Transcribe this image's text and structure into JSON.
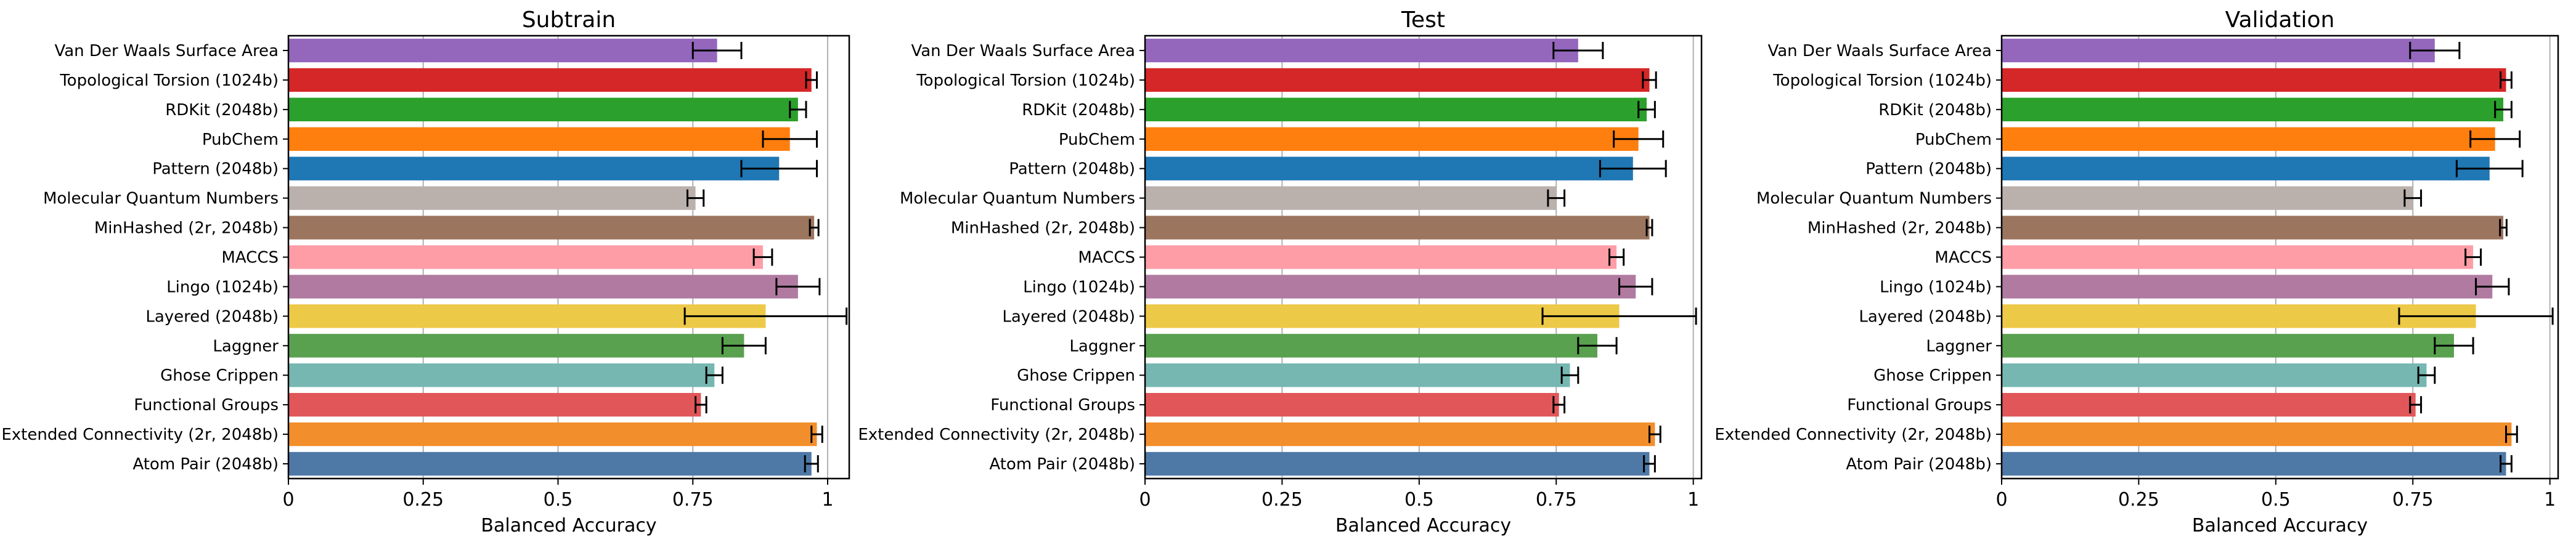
{
  "chart_data": [
    {
      "type": "bar",
      "orientation": "horizontal",
      "title": "Subtrain",
      "xlabel": "Balanced Accuracy",
      "xlim": [
        0,
        1.04
      ],
      "xticks": [
        0,
        0.25,
        0.5,
        0.75,
        1
      ],
      "xtick_labels": [
        "0",
        "0.25",
        "0.5",
        "0.75",
        "1"
      ],
      "grid": "vertical",
      "categories": [
        "Van Der Waals Surface Area",
        "Topological Torsion (1024b)",
        "RDKit (2048b)",
        "PubChem",
        "Pattern (2048b)",
        "Molecular Quantum Numbers",
        "MinHashed (2r, 2048b)",
        "MACCS",
        "Lingo (1024b)",
        "Layered (2048b)",
        "Laggner",
        "Ghose Crippen",
        "Functional Groups",
        "Extended Connectivity (2r, 2048b)",
        "Atom Pair (2048b)"
      ],
      "values": [
        0.795,
        0.97,
        0.945,
        0.93,
        0.91,
        0.755,
        0.975,
        0.88,
        0.945,
        0.885,
        0.845,
        0.79,
        0.765,
        0.98,
        0.97
      ],
      "errors": [
        0.045,
        0.01,
        0.015,
        0.05,
        0.07,
        0.015,
        0.008,
        0.017,
        0.04,
        0.15,
        0.04,
        0.015,
        0.01,
        0.01,
        0.012
      ]
    },
    {
      "type": "bar",
      "orientation": "horizontal",
      "title": "Test",
      "xlabel": "Balanced Accuracy",
      "xlim": [
        0,
        1.015
      ],
      "xticks": [
        0,
        0.25,
        0.5,
        0.75,
        1
      ],
      "xtick_labels": [
        "0",
        "0.25",
        "0.5",
        "0.75",
        "1"
      ],
      "grid": "vertical",
      "categories": [
        "Van Der Waals Surface Area",
        "Topological Torsion (1024b)",
        "RDKit (2048b)",
        "PubChem",
        "Pattern (2048b)",
        "Molecular Quantum Numbers",
        "MinHashed (2r, 2048b)",
        "MACCS",
        "Lingo (1024b)",
        "Layered (2048b)",
        "Laggner",
        "Ghose Crippen",
        "Functional Groups",
        "Extended Connectivity (2r, 2048b)",
        "Atom Pair (2048b)"
      ],
      "values": [
        0.79,
        0.92,
        0.915,
        0.9,
        0.89,
        0.75,
        0.92,
        0.86,
        0.895,
        0.865,
        0.825,
        0.775,
        0.755,
        0.93,
        0.92
      ],
      "errors": [
        0.045,
        0.012,
        0.015,
        0.045,
        0.06,
        0.015,
        0.005,
        0.013,
        0.03,
        0.14,
        0.035,
        0.015,
        0.01,
        0.01,
        0.01
      ]
    },
    {
      "type": "bar",
      "orientation": "horizontal",
      "title": "Validation",
      "xlabel": "Balanced Accuracy",
      "xlim": [
        0,
        1.015
      ],
      "xticks": [
        0,
        0.25,
        0.5,
        0.75,
        1
      ],
      "xtick_labels": [
        "0",
        "0.25",
        "0.5",
        "0.75",
        "1"
      ],
      "grid": "vertical",
      "categories": [
        "Van Der Waals Surface Area",
        "Topological Torsion (1024b)",
        "RDKit (2048b)",
        "PubChem",
        "Pattern (2048b)",
        "Molecular Quantum Numbers",
        "MinHashed (2r, 2048b)",
        "MACCS",
        "Lingo (1024b)",
        "Layered (2048b)",
        "Laggner",
        "Ghose Crippen",
        "Functional Groups",
        "Extended Connectivity (2r, 2048b)",
        "Atom Pair (2048b)"
      ],
      "values": [
        0.79,
        0.92,
        0.915,
        0.9,
        0.89,
        0.75,
        0.915,
        0.86,
        0.895,
        0.865,
        0.825,
        0.775,
        0.755,
        0.93,
        0.92
      ],
      "errors": [
        0.045,
        0.01,
        0.015,
        0.045,
        0.06,
        0.015,
        0.006,
        0.014,
        0.03,
        0.14,
        0.035,
        0.015,
        0.01,
        0.01,
        0.01
      ]
    }
  ],
  "colors": [
    "#9467bd",
    "#d62728",
    "#2ca02c",
    "#ff7f0e",
    "#1f77b4",
    "#bab0ac",
    "#9c755f",
    "#ff9da7",
    "#b07aa1",
    "#edc948",
    "#59a14f",
    "#76b7b2",
    "#e15759",
    "#f28e2b",
    "#4e79a7"
  ]
}
